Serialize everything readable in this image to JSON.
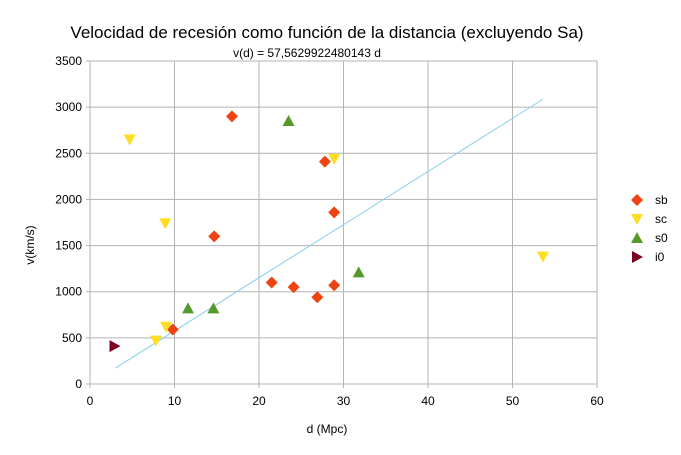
{
  "chart_data": {
    "type": "scatter",
    "title": "Velocidad de recesión como función de la distancia (excluyendo Sa)",
    "subtitle": "v(d) = 57,5629922480143 d",
    "xlabel": "d (Mpc)",
    "ylabel": "v(km/s)",
    "xlim": [
      0,
      60
    ],
    "ylim": [
      0,
      3500
    ],
    "xticks": [
      0,
      10,
      20,
      30,
      40,
      50,
      60
    ],
    "yticks": [
      0,
      500,
      1000,
      1500,
      2000,
      2500,
      3000,
      3500
    ],
    "grid": true,
    "legend_position": "right",
    "series": [
      {
        "name": "sb",
        "marker": "diamond",
        "color": "#ee4411",
        "points": [
          [
            16.8,
            2900
          ],
          [
            14.7,
            1600
          ],
          [
            27.8,
            2410
          ],
          [
            28.9,
            1860
          ],
          [
            21.5,
            1100
          ],
          [
            24.1,
            1050
          ],
          [
            26.9,
            940
          ],
          [
            28.9,
            1070
          ],
          [
            9.8,
            590
          ]
        ]
      },
      {
        "name": "sc",
        "marker": "triangle-down",
        "color": "#ffdd22",
        "points": [
          [
            4.7,
            2650
          ],
          [
            8.9,
            1740
          ],
          [
            28.9,
            2440
          ],
          [
            53.6,
            1380
          ],
          [
            9.0,
            620
          ],
          [
            7.8,
            470
          ]
        ]
      },
      {
        "name": "s0",
        "marker": "triangle-up",
        "color": "#55992b",
        "points": [
          [
            23.5,
            2850
          ],
          [
            31.8,
            1210
          ],
          [
            11.6,
            820
          ],
          [
            14.6,
            820
          ]
        ]
      },
      {
        "name": "i0",
        "marker": "triangle-right",
        "color": "#7e0021",
        "points": [
          [
            2.9,
            410
          ]
        ]
      }
    ],
    "trendline": {
      "slope": 57.5629922480143,
      "x_range": [
        3.0,
        53.6
      ],
      "color": "#87ceeb"
    }
  }
}
